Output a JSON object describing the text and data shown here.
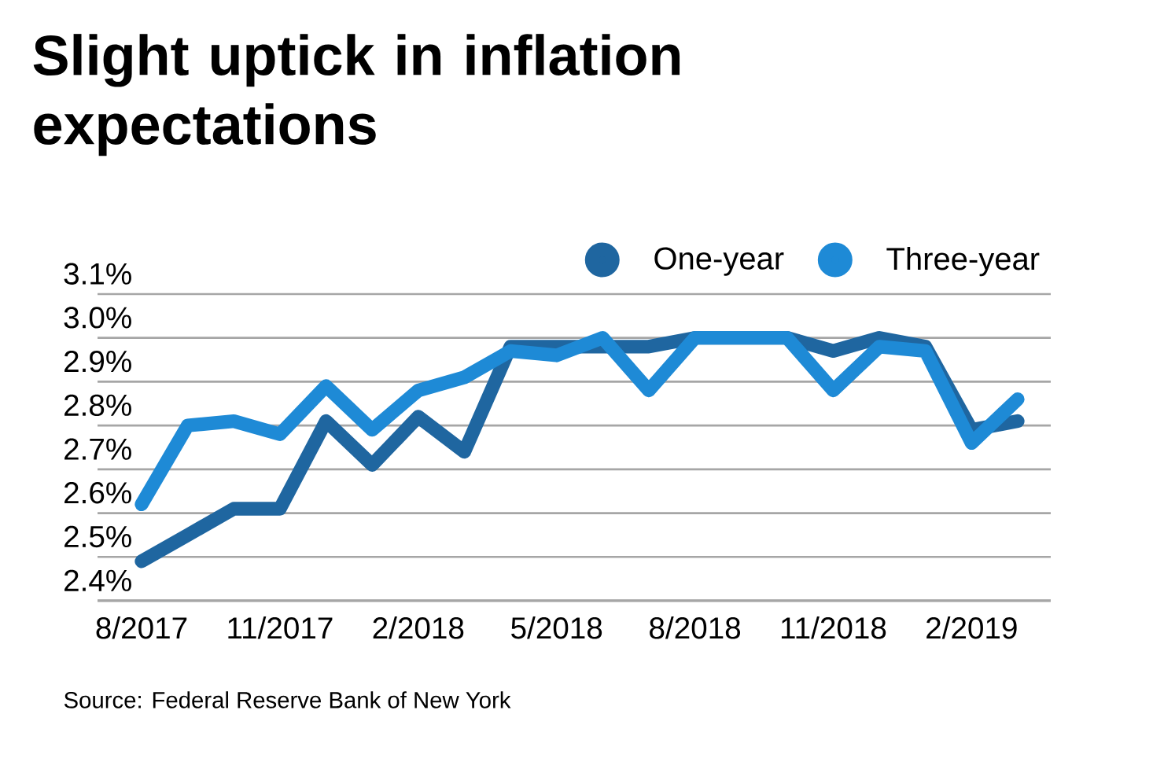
{
  "chart_data": {
    "type": "line",
    "title": "Slight uptick in inflation expectations",
    "categories": [
      "8/2017",
      null,
      null,
      "11/2017",
      null,
      null,
      "2/2018",
      null,
      null,
      "5/2018",
      null,
      null,
      "8/2018",
      null,
      null,
      "11/2018",
      null,
      null,
      "2/2019",
      null
    ],
    "series": [
      {
        "name": "One-year",
        "color": "#1f66a0",
        "values": [
          2.49,
          2.55,
          2.61,
          2.61,
          2.81,
          2.71,
          2.82,
          2.74,
          2.98,
          2.98,
          2.98,
          2.98,
          3.0,
          3.0,
          3.0,
          2.97,
          3.0,
          2.98,
          2.79,
          2.81
        ]
      },
      {
        "name": "Three-year",
        "color": "#1e8ad6",
        "values": [
          2.62,
          2.8,
          2.81,
          2.78,
          2.89,
          2.79,
          2.88,
          2.91,
          2.97,
          2.96,
          3.0,
          2.88,
          3.0,
          3.0,
          3.0,
          2.88,
          2.98,
          2.97,
          2.76,
          2.86
        ]
      }
    ],
    "ylim": [
      2.4,
      3.1
    ],
    "yticks": [
      {
        "value": 2.4,
        "label": "2.4%"
      },
      {
        "value": 2.5,
        "label": "2.5%"
      },
      {
        "value": 2.6,
        "label": "2.6%"
      },
      {
        "value": 2.7,
        "label": "2.7%"
      },
      {
        "value": 2.8,
        "label": "2.8%"
      },
      {
        "value": 2.9,
        "label": "2.9%"
      },
      {
        "value": 3.0,
        "label": "3.0%"
      },
      {
        "value": 3.1,
        "label": "3.1%"
      }
    ],
    "grid": "y",
    "legend": "top right",
    "marker": "none",
    "line_style": "solid",
    "annotations": [
      "Source: Federal Reserve Bank of New York"
    ]
  }
}
